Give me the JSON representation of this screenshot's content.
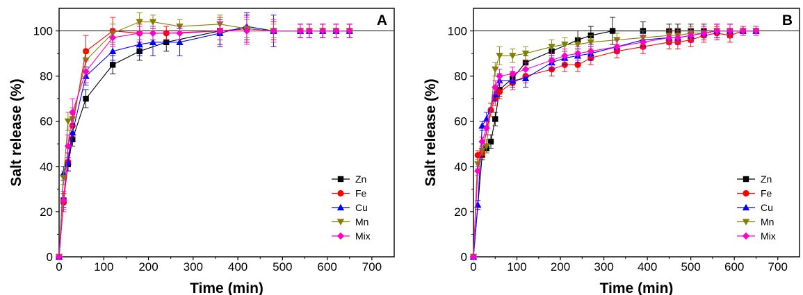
{
  "chart_data": [
    {
      "type": "line",
      "panel_label": "A",
      "xlabel": "Time (min)",
      "ylabel": "Salt release (%)",
      "xlim": [
        0,
        750
      ],
      "ylim": [
        0,
        110
      ],
      "xticks": [
        0,
        100,
        200,
        300,
        400,
        500,
        600,
        700
      ],
      "yticks": [
        0,
        20,
        40,
        60,
        80,
        100
      ],
      "reference_line": 100,
      "legend_position": "bottom-right",
      "series": [
        {
          "name": "Zn",
          "color": "#000000",
          "marker": "square",
          "x": [
            0,
            10,
            20,
            30,
            60,
            120,
            180,
            240,
            360,
            420,
            480,
            540,
            560,
            590,
            620,
            650
          ],
          "y": [
            0,
            25,
            41,
            52,
            70,
            85,
            91,
            95,
            100,
            101,
            100,
            100,
            100,
            100,
            100,
            100
          ],
          "err": [
            0,
            3,
            3,
            3,
            4,
            4,
            4,
            4,
            6,
            6,
            4,
            3,
            3,
            3,
            3,
            3
          ]
        },
        {
          "name": "Fe",
          "color": "#ff0000",
          "marker": "circle",
          "x": [
            0,
            10,
            20,
            30,
            60,
            120,
            180,
            240,
            360,
            420,
            480,
            540,
            560,
            590,
            620,
            650
          ],
          "y": [
            0,
            24,
            42,
            58,
            91,
            100,
            99,
            99,
            100,
            101,
            100,
            100,
            100,
            100,
            100,
            100
          ],
          "err": [
            0,
            4,
            4,
            5,
            7,
            6,
            4,
            3,
            6,
            6,
            4,
            3,
            3,
            3,
            3,
            3
          ]
        },
        {
          "name": "Cu",
          "color": "#0000ff",
          "marker": "triangle-up",
          "x": [
            0,
            10,
            20,
            30,
            60,
            120,
            180,
            210,
            270,
            360,
            420,
            480,
            540,
            560,
            590,
            620,
            650
          ],
          "y": [
            0,
            37,
            42,
            55,
            80,
            91,
            94,
            95,
            95,
            99,
            102,
            100,
            100,
            100,
            100,
            100,
            100
          ],
          "err": [
            0,
            3,
            4,
            4,
            4,
            4,
            5,
            6,
            6,
            6,
            6,
            7,
            3,
            3,
            3,
            3,
            3
          ]
        },
        {
          "name": "Mn",
          "color": "#808000",
          "marker": "triangle-down",
          "x": [
            0,
            10,
            20,
            30,
            60,
            120,
            180,
            210,
            270,
            360,
            420,
            480,
            540,
            560,
            590,
            620,
            650
          ],
          "y": [
            0,
            35,
            60,
            61,
            87,
            99,
            104,
            104,
            102,
            103,
            101,
            100,
            100,
            100,
            100,
            100,
            100
          ],
          "err": [
            0,
            3,
            4,
            5,
            4,
            4,
            4,
            3,
            3,
            4,
            4,
            3,
            3,
            3,
            3,
            3,
            3
          ]
        },
        {
          "name": "Mix",
          "color": "#ff00cc",
          "marker": "diamond",
          "x": [
            0,
            10,
            20,
            30,
            60,
            120,
            180,
            210,
            270,
            360,
            420,
            480,
            540,
            560,
            590,
            620,
            650
          ],
          "y": [
            0,
            25,
            49,
            64,
            82,
            97,
            99,
            99,
            99,
            100,
            100,
            100,
            100,
            100,
            100,
            100,
            100
          ],
          "err": [
            0,
            4,
            5,
            6,
            5,
            4,
            3,
            3,
            3,
            4,
            6,
            5,
            3,
            3,
            3,
            3,
            3
          ]
        }
      ]
    },
    {
      "type": "line",
      "panel_label": "B",
      "xlabel": "Time (min)",
      "ylabel": "Salt release (%)",
      "xlim": [
        0,
        750
      ],
      "ylim": [
        0,
        110
      ],
      "xticks": [
        0,
        100,
        200,
        300,
        400,
        500,
        600,
        700
      ],
      "yticks": [
        0,
        20,
        40,
        60,
        80,
        100
      ],
      "reference_line": 100,
      "legend_position": "bottom-right",
      "series": [
        {
          "name": "Zn",
          "color": "#000000",
          "marker": "square",
          "x": [
            0,
            20,
            30,
            40,
            50,
            60,
            90,
            120,
            180,
            240,
            270,
            320,
            390,
            450,
            470,
            500,
            530,
            560,
            590,
            620,
            650
          ],
          "y": [
            0,
            45,
            48,
            51,
            61,
            74,
            79,
            86,
            91,
            96,
            98,
            100,
            100,
            100,
            100,
            100,
            100,
            100,
            100,
            100,
            100
          ],
          "err": [
            0,
            2,
            2,
            3,
            3,
            3,
            3,
            3,
            3,
            4,
            4,
            6,
            4,
            3,
            3,
            3,
            3,
            3,
            3,
            2,
            2
          ]
        },
        {
          "name": "Fe",
          "color": "#ff0000",
          "marker": "circle",
          "x": [
            0,
            10,
            20,
            40,
            50,
            60,
            90,
            120,
            180,
            210,
            240,
            270,
            330,
            390,
            450,
            470,
            500,
            530,
            560,
            590,
            620,
            650
          ],
          "y": [
            0,
            45,
            46,
            65,
            70,
            73,
            77,
            80,
            83,
            85,
            85,
            88,
            91,
            93,
            95,
            95,
            96,
            98,
            99,
            98,
            100,
            100
          ],
          "err": [
            0,
            2,
            2,
            3,
            3,
            3,
            3,
            3,
            3,
            3,
            3,
            3,
            3,
            3,
            3,
            3,
            3,
            3,
            3,
            3,
            2,
            2
          ]
        },
        {
          "name": "Cu",
          "color": "#0000ff",
          "marker": "triangle-up",
          "x": [
            0,
            10,
            20,
            30,
            50,
            60,
            90,
            120,
            180,
            210,
            240,
            270,
            330,
            390,
            450,
            470,
            500,
            530,
            560,
            590,
            620,
            650
          ],
          "y": [
            0,
            23,
            58,
            61,
            72,
            78,
            78,
            79,
            86,
            88,
            89,
            90,
            93,
            96,
            97,
            97,
            98,
            99,
            100,
            100,
            100,
            100
          ],
          "err": [
            0,
            2,
            2,
            3,
            3,
            3,
            3,
            4,
            3,
            3,
            3,
            3,
            3,
            3,
            3,
            3,
            3,
            3,
            3,
            3,
            2,
            2
          ]
        },
        {
          "name": "Mn",
          "color": "#808000",
          "marker": "triangle-down",
          "x": [
            0,
            10,
            20,
            30,
            50,
            60,
            90,
            120,
            180,
            210,
            240,
            270,
            330,
            390,
            450,
            470,
            500,
            530,
            560,
            590,
            620,
            650
          ],
          "y": [
            0,
            41,
            47,
            49,
            83,
            89,
            89,
            90,
            93,
            94,
            94,
            95,
            96,
            97,
            98,
            98,
            99,
            99,
            100,
            100,
            100,
            100
          ],
          "err": [
            0,
            2,
            2,
            3,
            3,
            4,
            3,
            3,
            3,
            3,
            3,
            3,
            3,
            3,
            3,
            3,
            3,
            3,
            3,
            3,
            2,
            2
          ]
        },
        {
          "name": "Mix",
          "color": "#ff00cc",
          "marker": "diamond",
          "x": [
            0,
            10,
            20,
            30,
            50,
            60,
            90,
            120,
            180,
            210,
            240,
            270,
            330,
            390,
            450,
            470,
            500,
            530,
            560,
            590,
            620,
            650
          ],
          "y": [
            0,
            38,
            51,
            57,
            75,
            80,
            81,
            83,
            87,
            89,
            90,
            91,
            93,
            95,
            97,
            97,
            98,
            99,
            100,
            100,
            100,
            100
          ],
          "err": [
            0,
            2,
            2,
            3,
            3,
            3,
            3,
            3,
            3,
            3,
            3,
            3,
            3,
            3,
            3,
            3,
            3,
            3,
            3,
            3,
            2,
            2
          ]
        }
      ]
    }
  ]
}
